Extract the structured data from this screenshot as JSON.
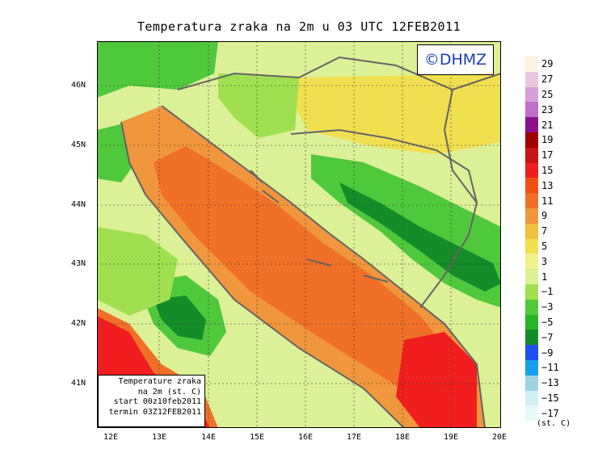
{
  "title": "Temperatura zraka na 2m u 03 UTC 12FEB2011",
  "logo": "©DHMZ",
  "info": {
    "line1": "Temperature zraka",
    "line2": "na 2m (st. C)",
    "line3": "start 00z10feb2011",
    "line4": "termin 03Z12FEB2011"
  },
  "lat_labels": [
    "46N",
    "45N",
    "44N",
    "43N",
    "42N",
    "41N"
  ],
  "lon_labels": [
    "12E",
    "13E",
    "14E",
    "15E",
    "16E",
    "17E",
    "18E",
    "19E",
    "20E"
  ],
  "legend": {
    "labels": [
      "29",
      "27",
      "25",
      "23",
      "21",
      "19",
      "17",
      "15",
      "13",
      "11",
      "9",
      "7",
      "5",
      "3",
      "1",
      "−1",
      "−3",
      "−5",
      "−7",
      "−9",
      "−11",
      "−13",
      "−15",
      "−17"
    ],
    "colors": [
      "#fff2e0",
      "#e8c8e0",
      "#d8a0d8",
      "#c070c8",
      "#8c0f8c",
      "#a00000",
      "#c81414",
      "#f01e1e",
      "#f05014",
      "#f07028",
      "#f0963c",
      "#f0c040",
      "#f0e050",
      "#f0f08c",
      "#dcf096",
      "#a0e050",
      "#50c83c",
      "#28b428",
      "#148c28",
      "#1e50f0",
      "#14a0f0",
      "#a0d2e6",
      "#d2f0f5",
      "#e6fafa"
    ],
    "unit": "(st. C)"
  },
  "palette": {
    "sea_hot": "#f07028",
    "sea_mid": "#f0963c",
    "sea_red": "#f01e1e",
    "land_cold": "#148c28",
    "land_cool": "#50c83c",
    "land_mild": "#a0e050",
    "land_pale": "#dcf096",
    "land_yellow": "#f0e050",
    "outline": "#646464"
  }
}
